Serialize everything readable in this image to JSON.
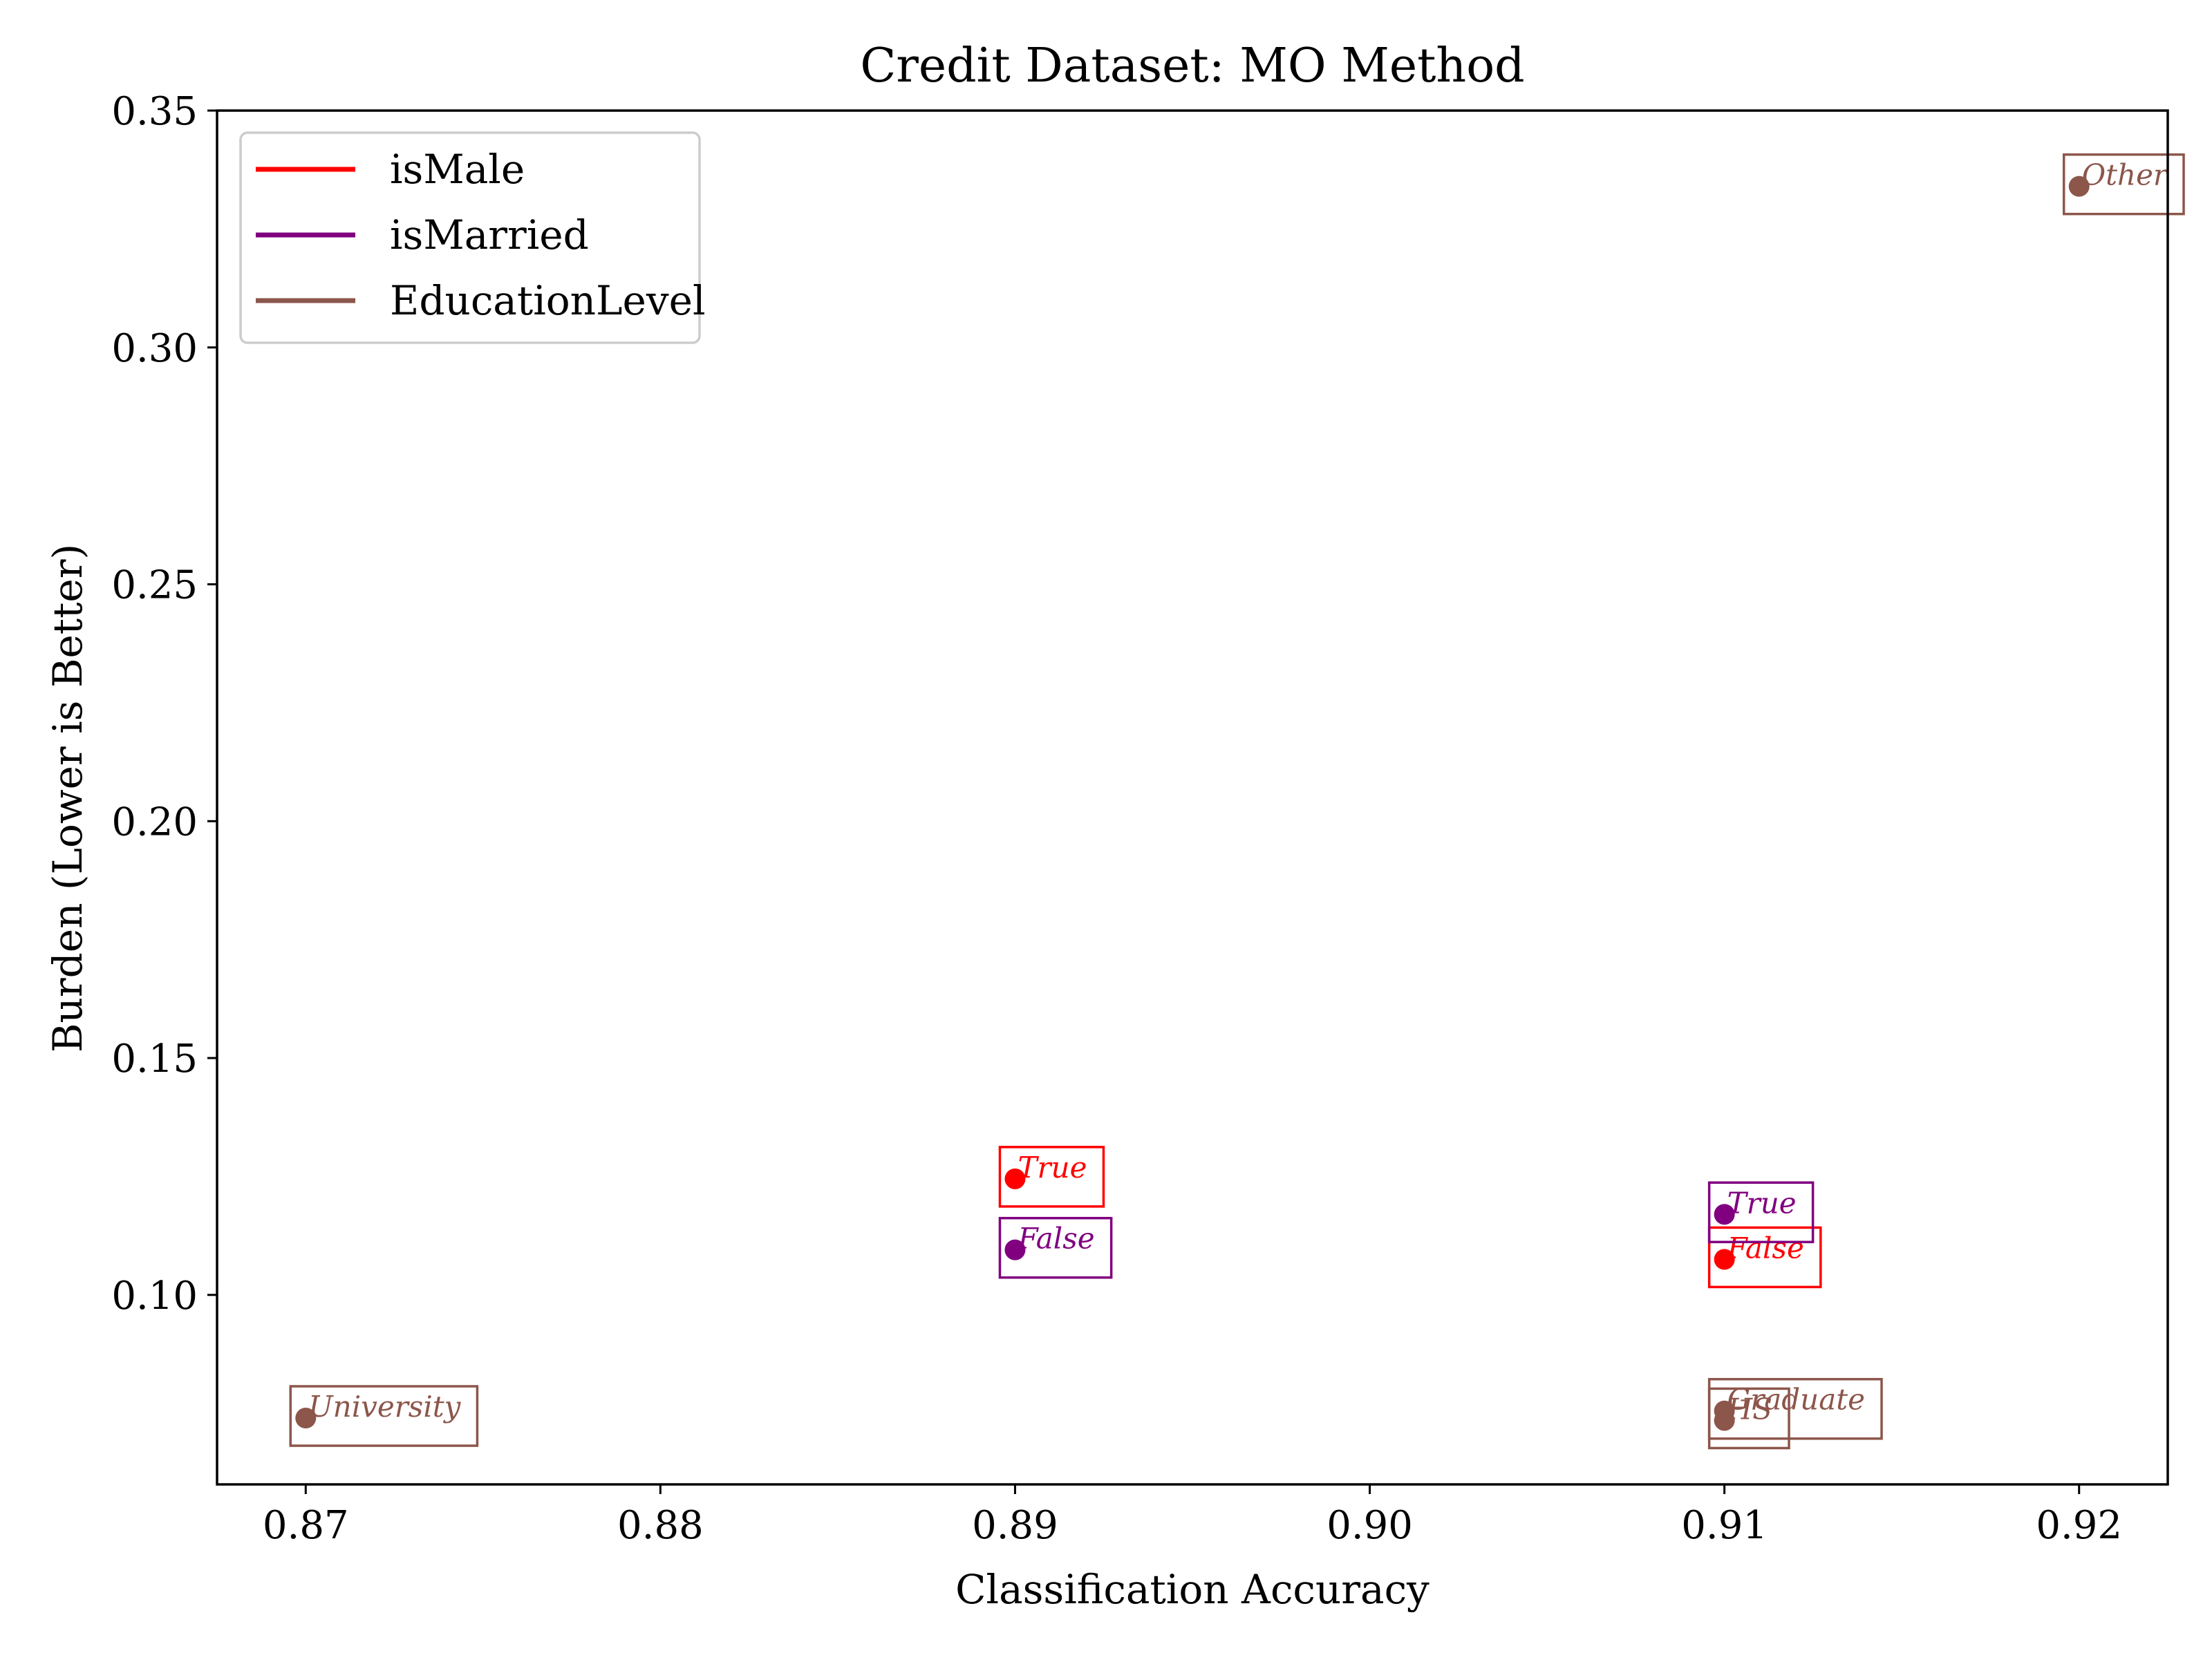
{
  "chart_data": {
    "type": "scatter",
    "title": "Credit Dataset: MO Method",
    "xlabel": "Classification Accuracy",
    "ylabel": "Burden (Lower is Better)",
    "xlim": [
      0.8675,
      0.9225
    ],
    "ylim": [
      0.06,
      0.35
    ],
    "xticks": [
      0.87,
      0.88,
      0.89,
      0.9,
      0.91,
      0.92
    ],
    "xtick_labels": [
      "0.87",
      "0.88",
      "0.89",
      "0.90",
      "0.91",
      "0.92"
    ],
    "yticks": [
      0.1,
      0.15,
      0.2,
      0.25,
      0.3,
      0.35
    ],
    "ytick_labels": [
      "0.10",
      "0.15",
      "0.20",
      "0.25",
      "0.30",
      "0.35"
    ],
    "grid": false,
    "legend_position": "top-left",
    "series": [
      {
        "name": "isMale",
        "color": "#ff0000",
        "points": [
          {
            "label": "True",
            "x": 0.89,
            "y": 0.1245
          },
          {
            "label": "False",
            "x": 0.91,
            "y": 0.1075
          }
        ]
      },
      {
        "name": "isMarried",
        "color": "#800080",
        "points": [
          {
            "label": "False",
            "x": 0.89,
            "y": 0.1095
          },
          {
            "label": "True",
            "x": 0.91,
            "y": 0.117
          }
        ]
      },
      {
        "name": "EducationLevel",
        "color": "#8c564b",
        "points": [
          {
            "label": "University",
            "x": 0.87,
            "y": 0.074
          },
          {
            "label": "Graduate",
            "x": 0.91,
            "y": 0.0755
          },
          {
            "label": "HS",
            "x": 0.91,
            "y": 0.0735
          },
          {
            "label": "Other",
            "x": 0.92,
            "y": 0.334
          }
        ]
      }
    ]
  }
}
